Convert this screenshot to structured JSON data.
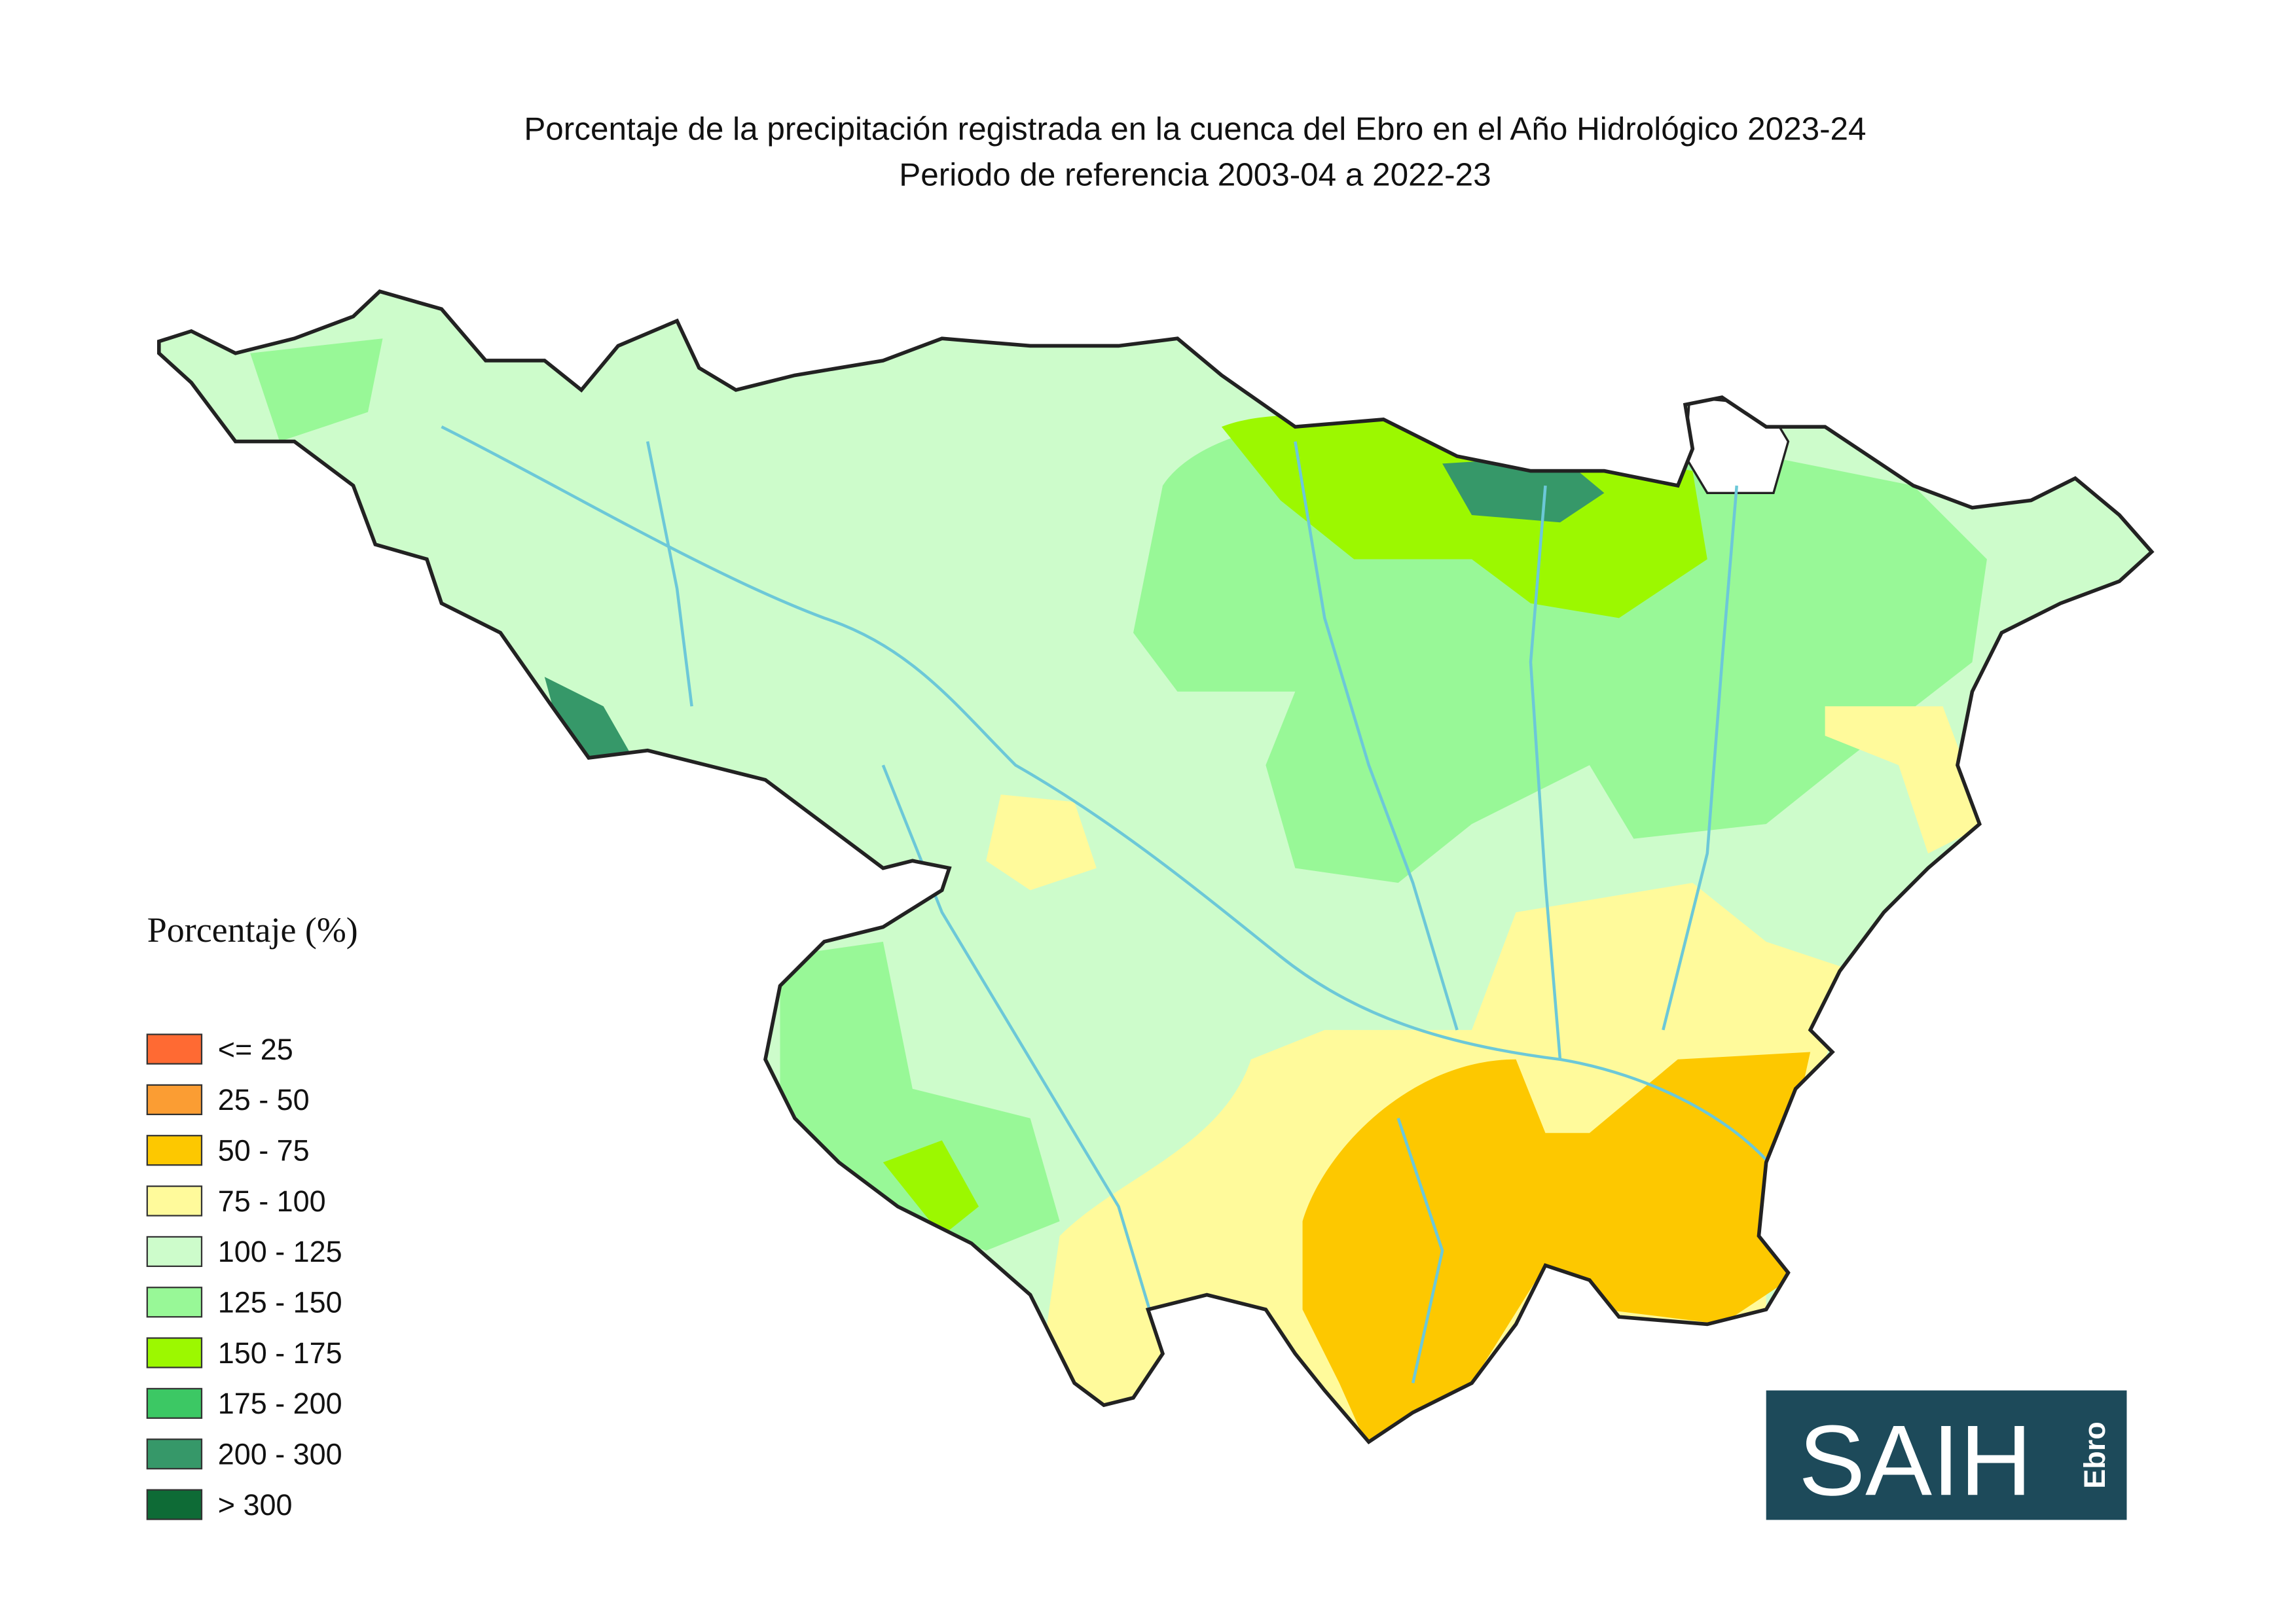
{
  "title": [
    "Porcentaje de la precipitación registrada  en la cuenca del Ebro en el Año Hidrológico 2023-24",
    "Periodo de referencia 2003-04 a 2022-23"
  ],
  "legend": {
    "title": "Porcentaje (%)",
    "items": [
      {
        "label": "<= 25",
        "color": "#ff6a33"
      },
      {
        "label": "25 - 50",
        "color": "#fb9d33"
      },
      {
        "label": "50 - 75",
        "color": "#fdc800"
      },
      {
        "label": "75 - 100",
        "color": "#fffa9b"
      },
      {
        "label": "100 - 125",
        "color": "#cdfccb"
      },
      {
        "label": "125 - 150",
        "color": "#98f897"
      },
      {
        "label": "150 - 175",
        "color": "#9cf800"
      },
      {
        "label": "175 - 200",
        "color": "#3cc864"
      },
      {
        "label": "200 - 300",
        "color": "#369869"
      },
      {
        "label": "> 300",
        "color": "#0e6b36"
      }
    ]
  },
  "logo": {
    "text": "SAIH",
    "subtext": "Ebro"
  }
}
